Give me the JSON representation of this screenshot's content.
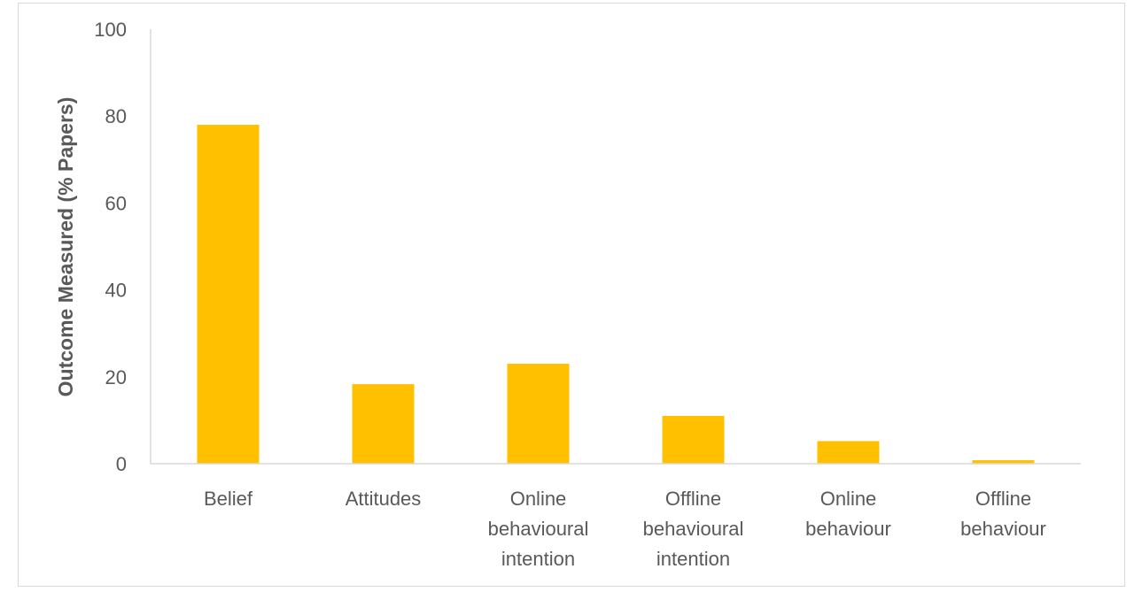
{
  "chart_data": {
    "type": "bar",
    "categories": [
      [
        "Belief"
      ],
      [
        "Attitudes"
      ],
      [
        "Online",
        "behavioural",
        "intention"
      ],
      [
        "Offline",
        "behavioural",
        "intention"
      ],
      [
        "Online",
        "behaviour"
      ],
      [
        "Offline",
        "behaviour"
      ]
    ],
    "values": [
      78,
      18.3,
      23,
      11,
      5.2,
      0.8
    ],
    "title": "",
    "xlabel": "",
    "ylabel": "Outcome Measured (% Papers)",
    "ylim": [
      0,
      100
    ],
    "yticks": [
      "0",
      "20",
      "40",
      "60",
      "80",
      "100"
    ],
    "grid": false,
    "legend": "none",
    "bar_color": "#FFC000",
    "axis_color": "#d9d9d9",
    "text_color": "#595959"
  }
}
